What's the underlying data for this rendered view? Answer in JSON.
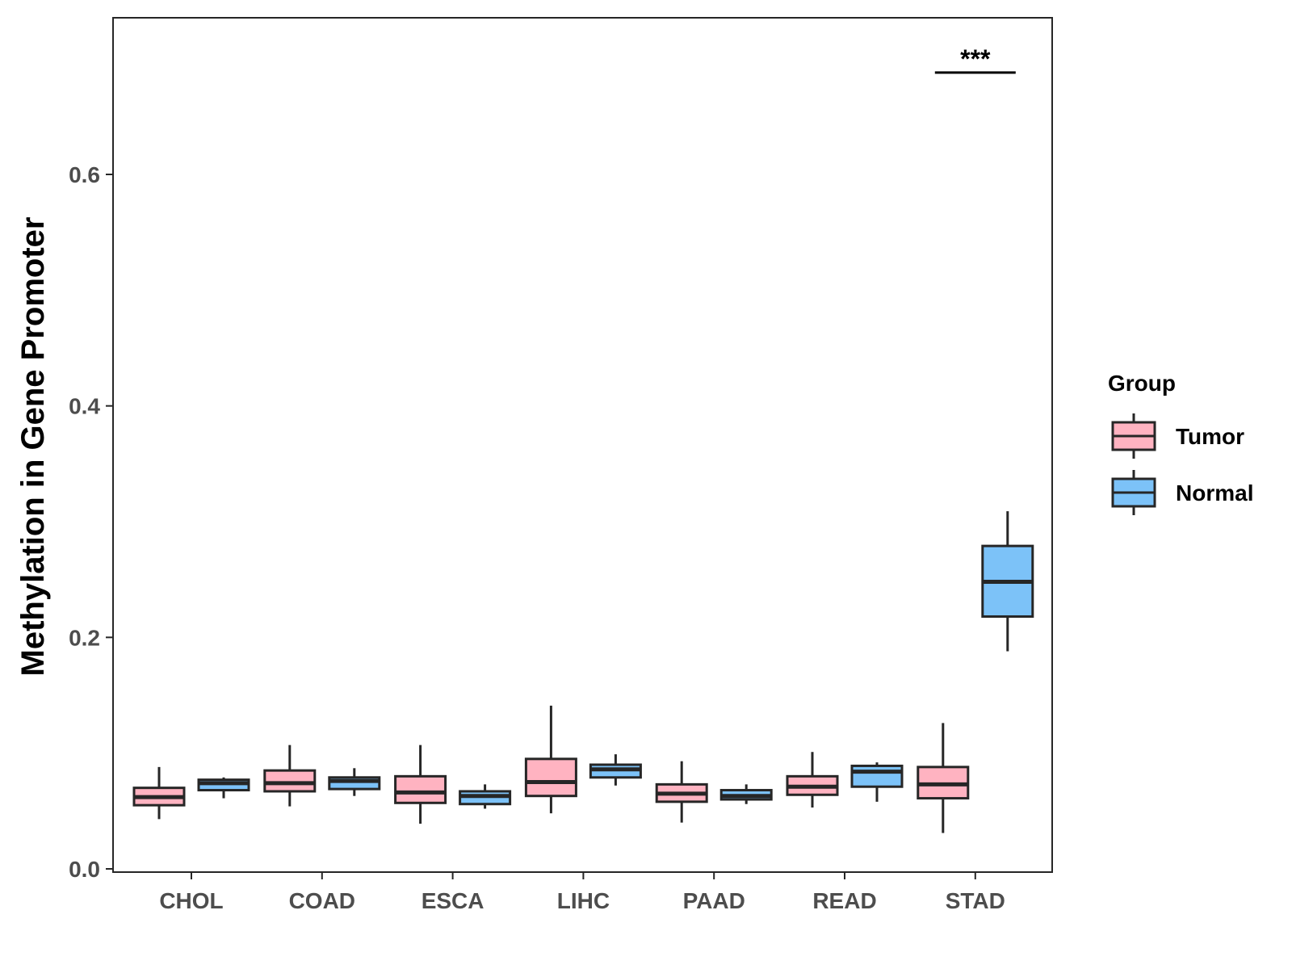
{
  "chart_data": {
    "type": "boxplot",
    "title": "",
    "xlabel": "",
    "ylabel": "Methylation in Gene Promoter",
    "ylim": [
      0.0,
      0.72
    ],
    "yticks": [
      0.0,
      0.2,
      0.4,
      0.6
    ],
    "ytick_labels": [
      "0.0",
      "0.2",
      "0.4",
      "0.6"
    ],
    "categories": [
      "CHOL",
      "COAD",
      "ESCA",
      "LIHC",
      "PAAD",
      "READ",
      "STAD"
    ],
    "legend": {
      "title": "Group",
      "position": "right",
      "entries": [
        {
          "name": "Tumor",
          "color": "#ffb3c1"
        },
        {
          "name": "Normal",
          "color": "#7cc2f8"
        }
      ]
    },
    "series": [
      {
        "name": "Tumor",
        "color": "#ffb3c1",
        "boxes": [
          {
            "category": "CHOL",
            "min": 0.043,
            "q1": 0.055,
            "median": 0.062,
            "q3": 0.07,
            "max": 0.088
          },
          {
            "category": "COAD",
            "min": 0.054,
            "q1": 0.067,
            "median": 0.074,
            "q3": 0.085,
            "max": 0.107
          },
          {
            "category": "ESCA",
            "min": 0.039,
            "q1": 0.057,
            "median": 0.066,
            "q3": 0.08,
            "max": 0.107
          },
          {
            "category": "LIHC",
            "min": 0.048,
            "q1": 0.063,
            "median": 0.075,
            "q3": 0.095,
            "max": 0.141
          },
          {
            "category": "PAAD",
            "min": 0.04,
            "q1": 0.058,
            "median": 0.065,
            "q3": 0.073,
            "max": 0.093
          },
          {
            "category": "READ",
            "min": 0.053,
            "q1": 0.064,
            "median": 0.071,
            "q3": 0.08,
            "max": 0.101
          },
          {
            "category": "STAD",
            "min": 0.031,
            "q1": 0.061,
            "median": 0.073,
            "q3": 0.088,
            "max": 0.126
          }
        ]
      },
      {
        "name": "Normal",
        "color": "#7cc2f8",
        "boxes": [
          {
            "category": "CHOL",
            "min": 0.061,
            "q1": 0.068,
            "median": 0.074,
            "q3": 0.077,
            "max": 0.079
          },
          {
            "category": "COAD",
            "min": 0.063,
            "q1": 0.069,
            "median": 0.076,
            "q3": 0.079,
            "max": 0.087
          },
          {
            "category": "ESCA",
            "min": 0.052,
            "q1": 0.056,
            "median": 0.063,
            "q3": 0.067,
            "max": 0.073
          },
          {
            "category": "LIHC",
            "min": 0.072,
            "q1": 0.079,
            "median": 0.086,
            "q3": 0.09,
            "max": 0.099
          },
          {
            "category": "PAAD",
            "min": 0.056,
            "q1": 0.06,
            "median": 0.063,
            "q3": 0.068,
            "max": 0.073
          },
          {
            "category": "READ",
            "min": 0.058,
            "q1": 0.071,
            "median": 0.084,
            "q3": 0.089,
            "max": 0.092
          },
          {
            "category": "STAD",
            "min": 0.188,
            "q1": 0.218,
            "median": 0.248,
            "q3": 0.279,
            "max": 0.309
          }
        ]
      }
    ],
    "annotations": [
      {
        "category": "STAD",
        "text": "***",
        "y": 0.688
      }
    ],
    "grid": false,
    "colors": {
      "box_stroke": "#262626",
      "axis": "#262626",
      "tick_text": "#4d4d4d",
      "background": "#ffffff"
    }
  }
}
